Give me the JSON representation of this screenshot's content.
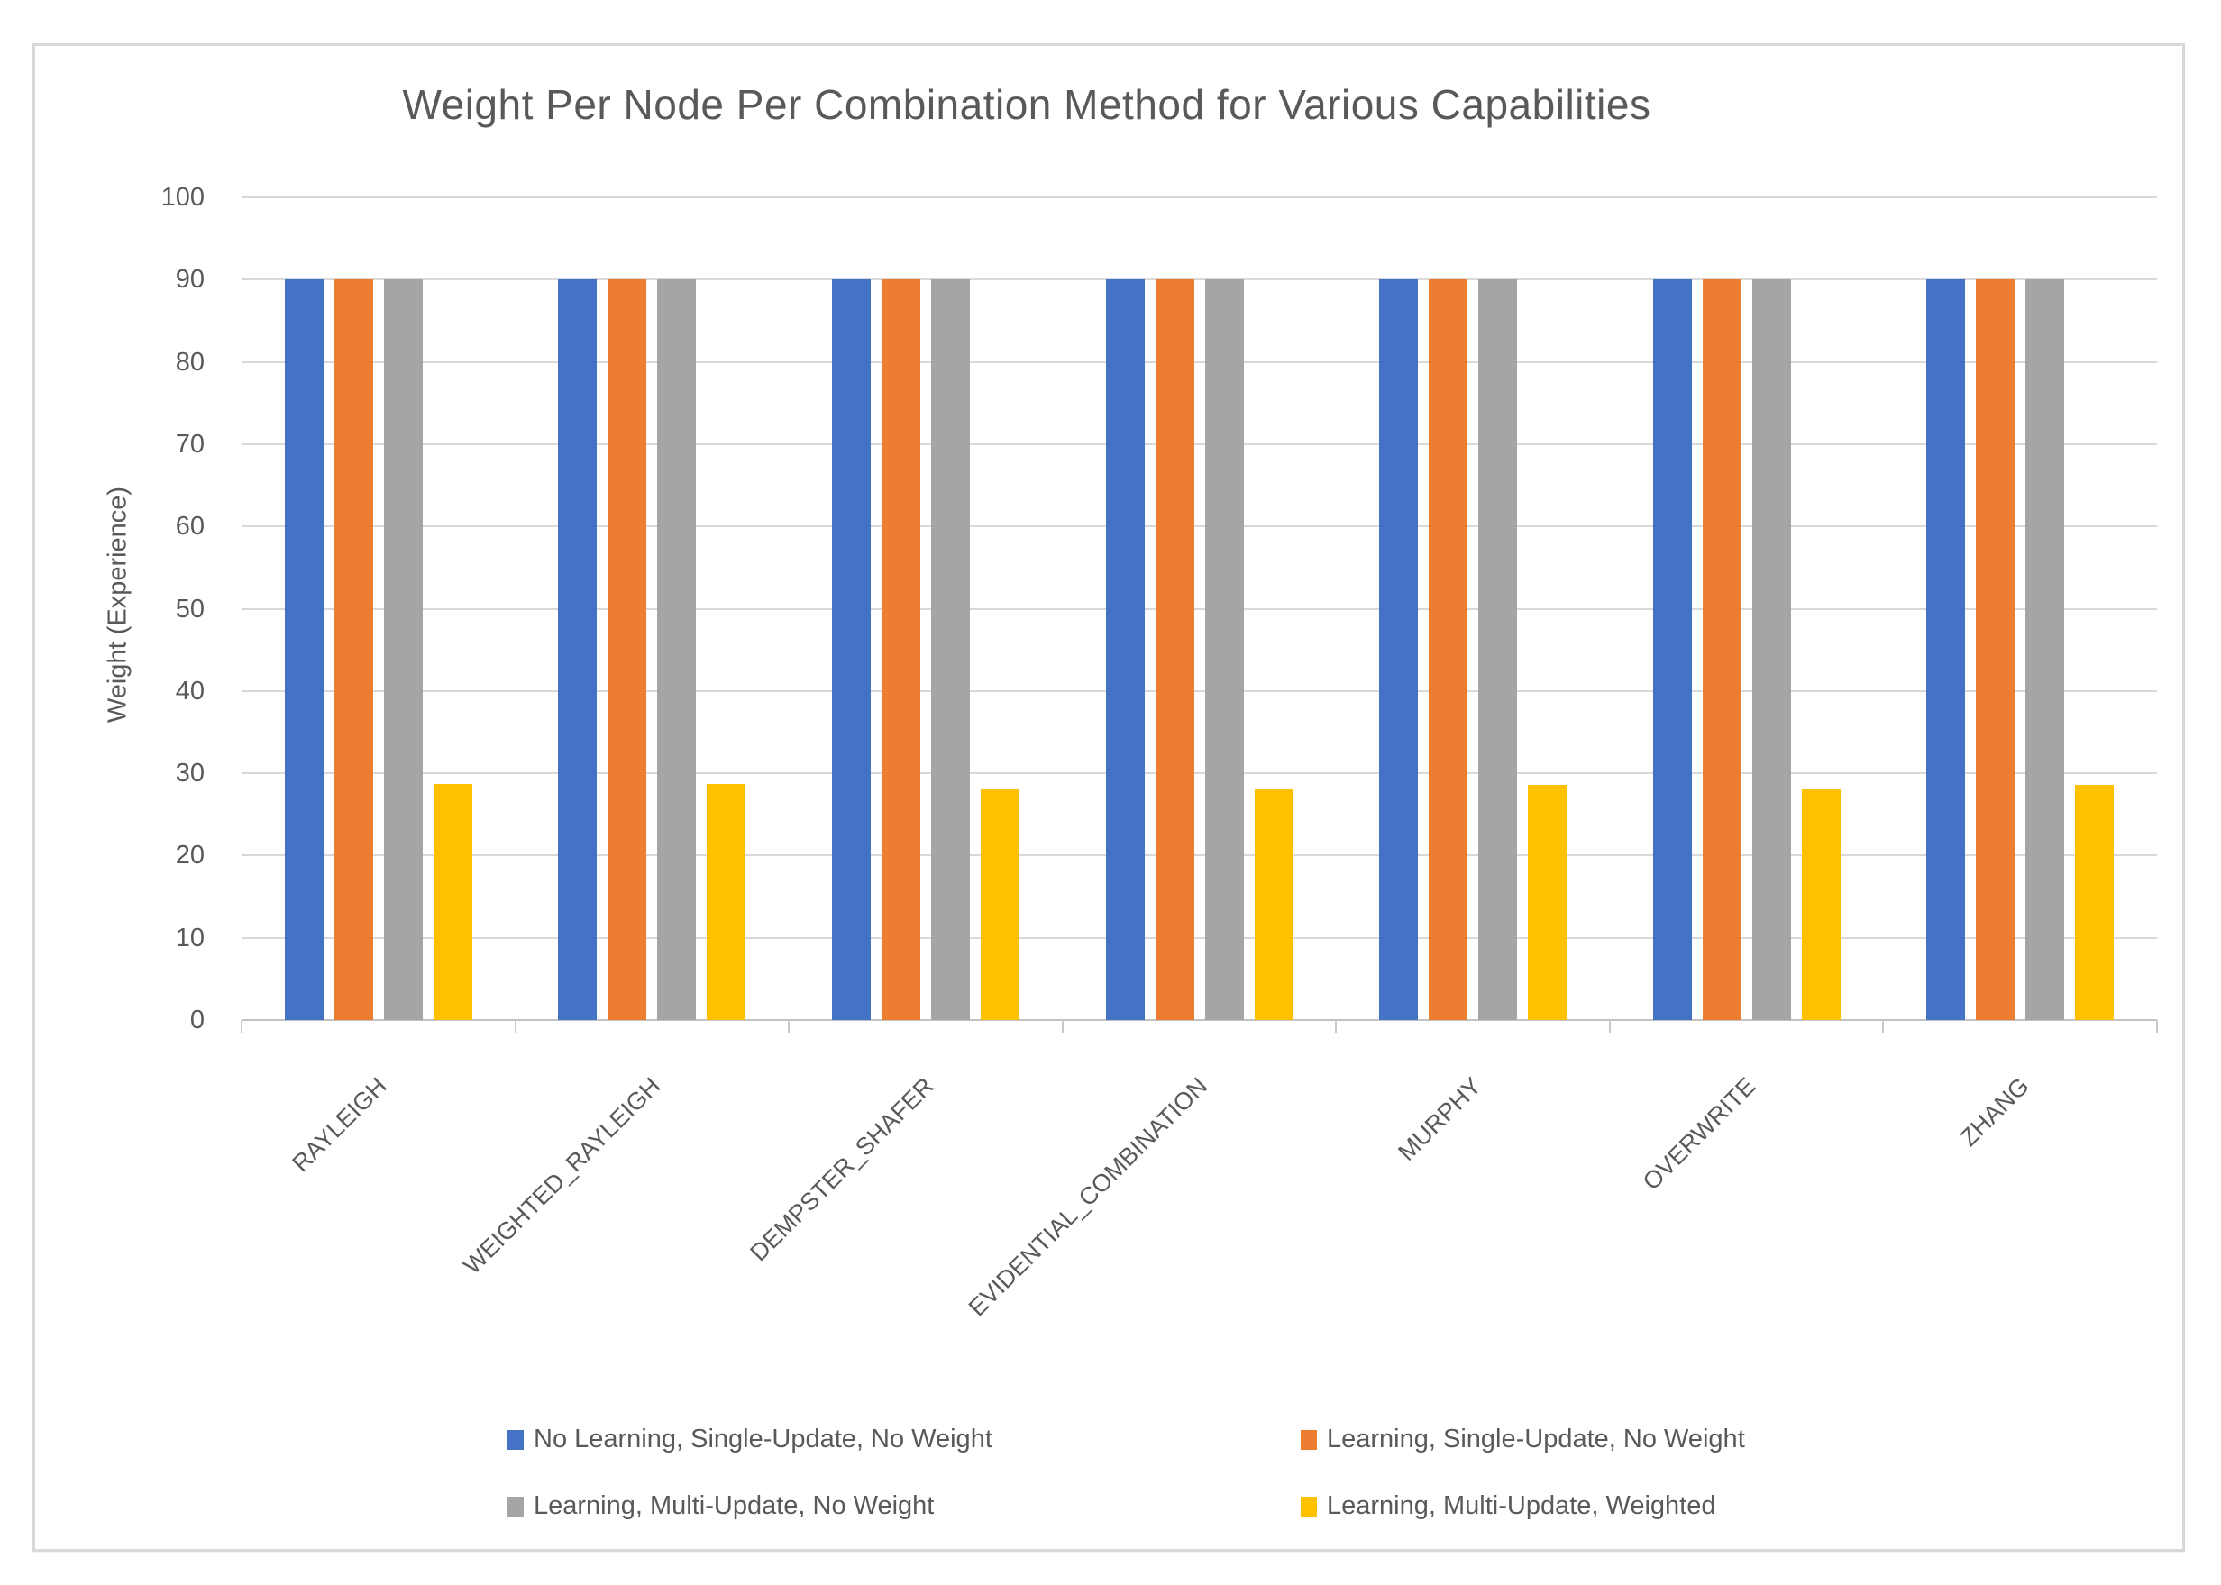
{
  "chart_data": {
    "type": "bar",
    "title": "Weight Per Node Per Combination Method for Various Capabilities",
    "xlabel": "",
    "ylabel": "Weight (Experience)",
    "ylim": [
      0,
      100
    ],
    "ytick_step": 10,
    "yticks": [
      0,
      10,
      20,
      30,
      40,
      50,
      60,
      70,
      80,
      90,
      100
    ],
    "grid": true,
    "legend_position": "bottom",
    "categories": [
      "RAYLEIGH",
      "WEIGHTED_RAYLEIGH",
      "DEMPSTER_SHAFER",
      "EVIDENTIAL_COMBINATION",
      "MURPHY",
      "OVERWRITE",
      "ZHANG"
    ],
    "series": [
      {
        "name": "No Learning, Single-Update, No Weight",
        "color": "#4472C4",
        "values": [
          90,
          90,
          90,
          90,
          90,
          90,
          90
        ]
      },
      {
        "name": "Learning, Single-Update, No Weight",
        "color": "#ED7D31",
        "values": [
          90,
          90,
          90,
          90,
          90,
          90,
          90
        ]
      },
      {
        "name": "Learning, Multi-Update, No Weight",
        "color": "#A5A5A5",
        "values": [
          90,
          90,
          90,
          90,
          90,
          90,
          90
        ]
      },
      {
        "name": "Learning, Multi-Update, Weighted",
        "color": "#FFC000",
        "values": [
          28.7,
          28.7,
          28.0,
          28.0,
          28.6,
          28.0,
          28.6
        ]
      }
    ]
  },
  "colors": {
    "text": "#595959",
    "gridline": "#D9D9D9",
    "axis": "#C2C2C2",
    "border": "#D8D8D8",
    "background": "#FFFFFF"
  }
}
